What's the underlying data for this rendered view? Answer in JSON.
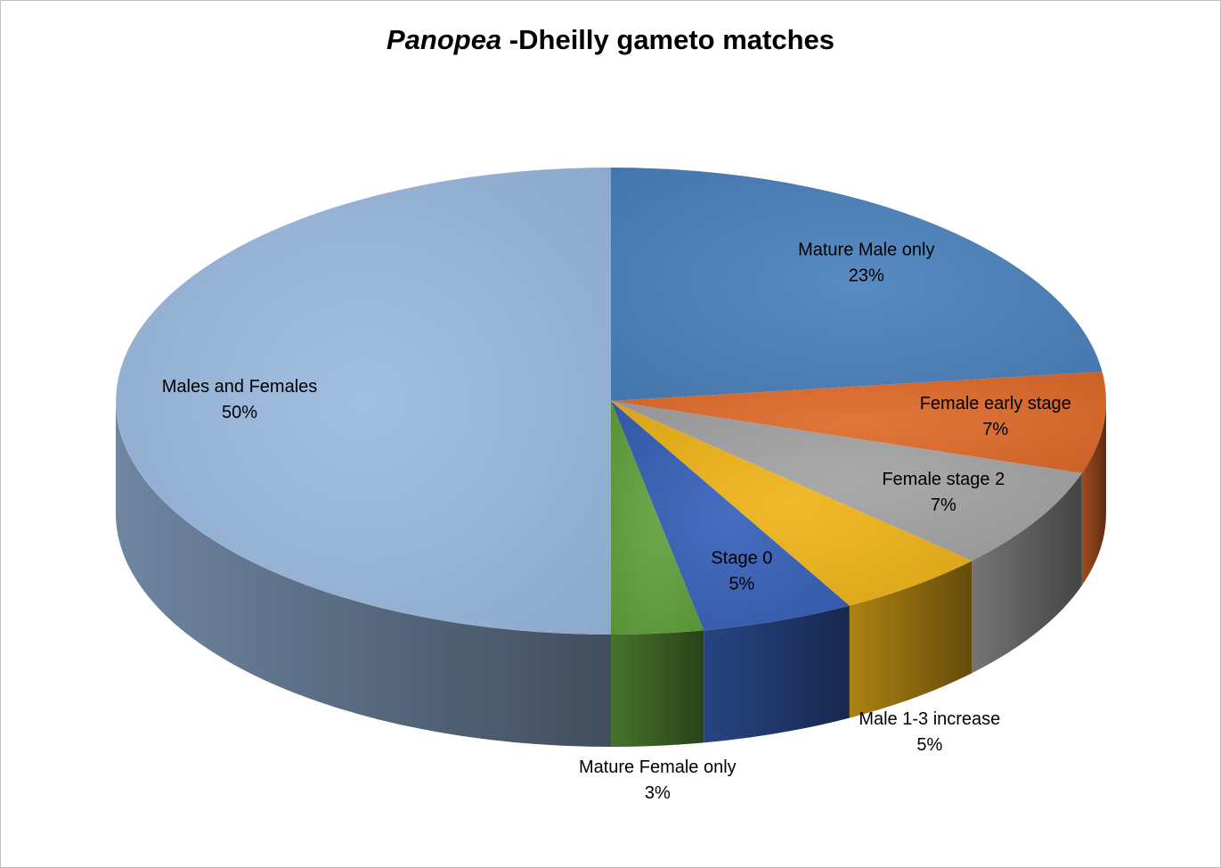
{
  "chart_data": {
    "type": "pie",
    "style": "3d",
    "title": {
      "italic_part": "Panopea",
      "rest": " -Dheilly gameto matches"
    },
    "slices": [
      {
        "label": "Mature Male only",
        "value": 23,
        "percent_label": "23%",
        "color": "#4a81bd"
      },
      {
        "label": "Female early stage",
        "value": 7,
        "percent_label": "7%",
        "color": "#e06a2a"
      },
      {
        "label": "Female stage 2",
        "value": 7,
        "percent_label": "7%",
        "color": "#a3a3a3"
      },
      {
        "label": "Male 1-3 increase",
        "value": 5,
        "percent_label": "5%",
        "color": "#f0b419"
      },
      {
        "label": "Stage 0",
        "value": 5,
        "percent_label": "5%",
        "color": "#3660b8"
      },
      {
        "label": "Mature Female only",
        "value": 3,
        "percent_label": "3%",
        "color": "#62a03c"
      },
      {
        "label": "Males and Females",
        "value": 50,
        "percent_label": "50%",
        "color": "#9ab9e0"
      }
    ],
    "legend": "none",
    "data_labels": "category name and percentage"
  }
}
